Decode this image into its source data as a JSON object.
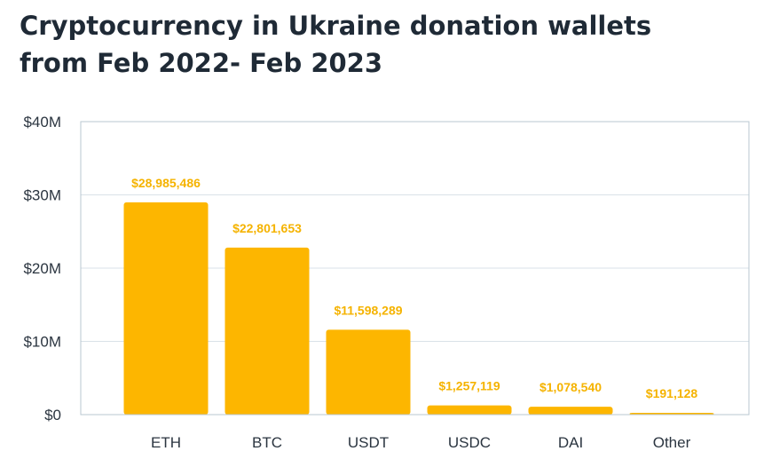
{
  "chart_data": {
    "type": "bar",
    "title": [
      "Cryptocurrency in Ukraine donation wallets",
      "from Feb 2022- Feb 2023"
    ],
    "xlabel": "",
    "ylabel": "",
    "categories": [
      "ETH",
      "BTC",
      "USDT",
      "USDC",
      "DAI",
      "Other"
    ],
    "values": [
      28985486,
      22801653,
      11598289,
      1257119,
      1078540,
      191128
    ],
    "data_labels": [
      "$28,985,486",
      "$22,801,653",
      "$11,598,289",
      "$1,257,119",
      "$1,078,540",
      "$191,128"
    ],
    "ylim": [
      0,
      40000000
    ],
    "yticks": [
      0,
      10000000,
      20000000,
      30000000,
      40000000
    ],
    "ytick_labels": [
      "$0",
      "$10M",
      "$20M",
      "$30M",
      "$40M"
    ],
    "grid": true,
    "colors": {
      "bar": "#fdb600",
      "data_label": "#f5b300",
      "grid": "#d9e2e8",
      "axis": "#b8c7d1",
      "text": "#2b3540"
    }
  }
}
